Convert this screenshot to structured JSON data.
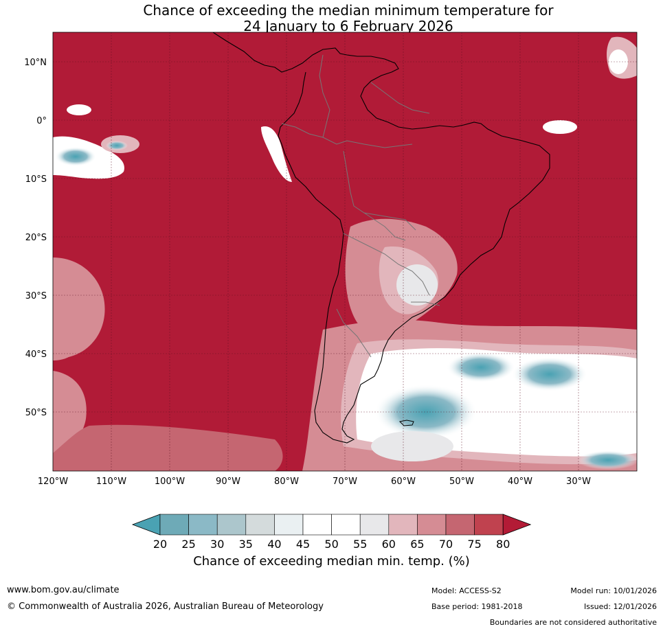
{
  "title": {
    "line1": "Chance of exceeding the median minimum temperature for",
    "line2": "24 January to 6 February 2026"
  },
  "axes": {
    "lat_labels": [
      "10°N",
      "0°",
      "10°S",
      "20°S",
      "30°S",
      "40°S",
      "50°S"
    ],
    "lon_labels": [
      "120°W",
      "110°W",
      "100°W",
      "90°W",
      "80°W",
      "70°W",
      "60°W",
      "50°W",
      "40°W",
      "30°W"
    ]
  },
  "colorbar": {
    "ticks": [
      "20",
      "25",
      "30",
      "35",
      "40",
      "45",
      "50",
      "55",
      "60",
      "65",
      "70",
      "75",
      "80"
    ],
    "colors": [
      "#4aa2b3",
      "#6eaab7",
      "#8bb9c6",
      "#acc6cc",
      "#d4dbdc",
      "#eaf0f2",
      "#ffffff",
      "#ffffff",
      "#e8e8ea",
      "#e2b6bc",
      "#d58c94",
      "#c56671",
      "#c0424f",
      "#b31b36"
    ],
    "title": "Chance of exceeding median min. temp. (%)"
  },
  "footer": {
    "url": "www.bom.gov.au/climate",
    "copyright": "© Commonwealth of Australia 2026, Australian Bureau of Meteorology",
    "model": "Model: ACCESS-S2",
    "base_period": "Base period: 1981-2018",
    "model_run": "Model run: 10/01/2026",
    "issued": "Issued: 12/01/2026",
    "disclaimer": "Boundaries are not considered authoritative"
  },
  "colors": {
    "dominant": "#b11b37",
    "ocean_grid": "#5a1020",
    "coast": "#000000",
    "borders": "#777777"
  }
}
